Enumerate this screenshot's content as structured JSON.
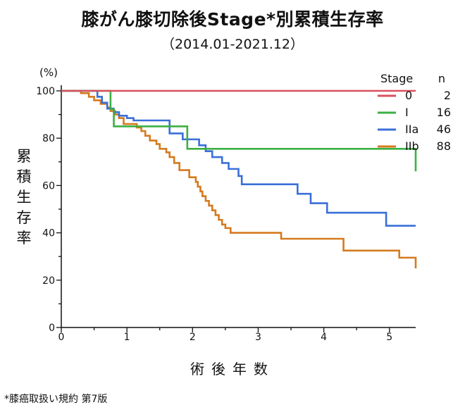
{
  "title": "膝がん膝切除後Stage*別累積生存率",
  "subtitle": "（2014.01-2021.12）",
  "footnote": "*膝癌取扱い規約 第7版",
  "chart_data": {
    "type": "line",
    "step": true,
    "ylabel": "累積生存率",
    "yunit": "(%)",
    "xlabel": "術後年数",
    "xlim": [
      0,
      5.4
    ],
    "ylim": [
      0,
      100
    ],
    "yticks": [
      0,
      20,
      40,
      60,
      80,
      100
    ],
    "xticks": [
      0,
      1,
      2,
      3,
      4,
      5
    ],
    "grid": false,
    "legend": {
      "position": "top-right",
      "header_name": "Stage",
      "header_n": "n"
    },
    "series": [
      {
        "name": "0",
        "n": "2",
        "color": "#d9505f",
        "x": [
          0,
          5.4
        ],
        "y": [
          100,
          100
        ]
      },
      {
        "name": "I",
        "n": "16",
        "color": "#3cb043",
        "x": [
          0,
          0.7,
          0.75,
          0.8,
          1.9,
          1.92,
          5.4
        ],
        "y": [
          100,
          100,
          92.3,
          85,
          85,
          75.5,
          66
        ]
      },
      {
        "name": "IIa",
        "n": "46",
        "color": "#3a6fd8",
        "x": [
          0,
          0.28,
          0.55,
          0.62,
          0.7,
          0.8,
          0.88,
          1.0,
          1.1,
          1.65,
          1.85,
          2.1,
          2.2,
          2.3,
          2.45,
          2.55,
          2.7,
          2.75,
          3.6,
          3.8,
          4.05,
          4.95,
          5.4
        ],
        "y": [
          100,
          100,
          97.5,
          95,
          92.5,
          91,
          89.5,
          88.5,
          87.5,
          82,
          79.5,
          77,
          74.5,
          72,
          69.5,
          67,
          64,
          60.5,
          56.5,
          52.5,
          48.5,
          43,
          43
        ]
      },
      {
        "name": "IIb",
        "n": "88",
        "color": "#d57a1f",
        "x": [
          0,
          0.3,
          0.42,
          0.5,
          0.6,
          0.7,
          0.75,
          0.82,
          0.88,
          0.95,
          1.15,
          1.22,
          1.28,
          1.35,
          1.45,
          1.5,
          1.6,
          1.65,
          1.72,
          1.8,
          1.95,
          2.05,
          2.08,
          2.12,
          2.15,
          2.2,
          2.25,
          2.3,
          2.35,
          2.4,
          2.45,
          2.5,
          2.58,
          3.35,
          4.3,
          5.15,
          5.4
        ],
        "y": [
          100,
          99,
          97.5,
          96,
          94.5,
          93,
          91.5,
          90,
          88.5,
          86,
          84.5,
          83,
          81,
          79,
          77.5,
          75.5,
          74,
          72,
          69.5,
          66.5,
          63.5,
          61.5,
          59.5,
          57.5,
          55.5,
          53.5,
          51.5,
          49.5,
          47.5,
          45.5,
          43.5,
          42,
          40,
          37.5,
          32.5,
          29.5,
          25
        ]
      }
    ]
  }
}
